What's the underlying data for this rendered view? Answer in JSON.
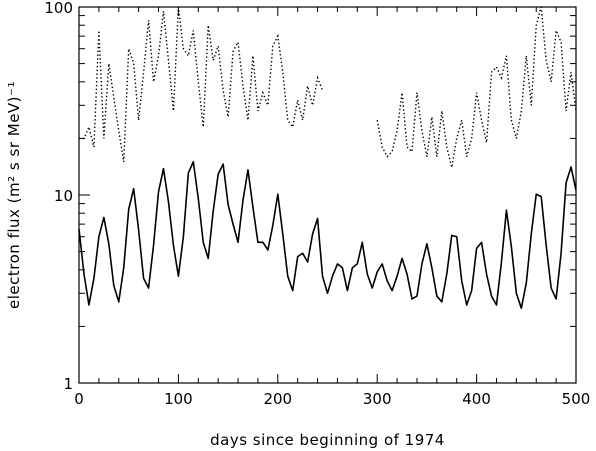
{
  "chart_data": {
    "type": "line",
    "xlabel": "days since beginning of 1974",
    "ylabel": "electron flux (m² s sr MeV)⁻¹",
    "xlim": [
      0,
      500
    ],
    "ylim": [
      1,
      100
    ],
    "yscale": "log",
    "grid": false,
    "xticks": [
      0,
      100,
      200,
      300,
      400,
      500
    ],
    "xtick_labels": [
      "0",
      "100",
      "200",
      "300",
      "400",
      "500"
    ],
    "yticks": [
      1,
      10,
      100
    ],
    "ytick_labels": [
      "1",
      "10",
      "100"
    ],
    "series": [
      {
        "style": "solid",
        "x": [
          0,
          5,
          10,
          15,
          20,
          25,
          30,
          35,
          40,
          45,
          50,
          55,
          60,
          65,
          70,
          75,
          80,
          85,
          90,
          95,
          100,
          105,
          110,
          115,
          120,
          125,
          130,
          135,
          140,
          145,
          150,
          155,
          160,
          165,
          170,
          175,
          180,
          185,
          190,
          195,
          200,
          205,
          210,
          215,
          220,
          225,
          230,
          235,
          240,
          245,
          250,
          255,
          260,
          265,
          270,
          275,
          280,
          285,
          290,
          295,
          300,
          305,
          310,
          315,
          320,
          325,
          330,
          335,
          340,
          345,
          350,
          355,
          360,
          365,
          370,
          375,
          380,
          385,
          390,
          395,
          400,
          405,
          410,
          415,
          420,
          425,
          430,
          435,
          440,
          445,
          450,
          455,
          460,
          465,
          470,
          475,
          480,
          485,
          490,
          495,
          500
        ],
        "y": [
          6.6,
          3.8,
          2.6,
          3.6,
          6.0,
          7.6,
          5.5,
          3.3,
          2.7,
          4.1,
          8.4,
          10.8,
          6.5,
          3.6,
          3.2,
          5.4,
          10.4,
          13.8,
          9.2,
          5.4,
          3.7,
          6.0,
          13.1,
          15.0,
          9.6,
          5.6,
          4.6,
          8.2,
          12.9,
          14.6,
          8.9,
          7.0,
          5.6,
          9.4,
          13.6,
          8.6,
          5.6,
          5.6,
          5.1,
          6.9,
          10.1,
          6.2,
          3.7,
          3.1,
          4.7,
          4.9,
          4.4,
          6.2,
          7.5,
          3.7,
          3.0,
          3.7,
          4.3,
          4.1,
          3.1,
          4.1,
          4.3,
          5.6,
          3.8,
          3.2,
          3.9,
          4.3,
          3.5,
          3.1,
          3.7,
          4.6,
          3.8,
          2.8,
          2.9,
          4.3,
          5.5,
          4.1,
          2.9,
          2.7,
          3.8,
          6.1,
          6.0,
          3.5,
          2.6,
          3.1,
          5.2,
          5.6,
          3.8,
          2.9,
          2.6,
          4.4,
          8.3,
          5.3,
          3.0,
          2.5,
          3.4,
          6.2,
          10.1,
          9.8,
          5.4,
          3.2,
          2.8,
          4.9,
          11.6,
          14.1,
          10.6
        ]
      },
      {
        "style": "dotted",
        "x": [
          0,
          5,
          10,
          15,
          20,
          25,
          30,
          35,
          40,
          45,
          50,
          55,
          60,
          65,
          70,
          75,
          80,
          85,
          90,
          95,
          100,
          105,
          110,
          115,
          120,
          125,
          130,
          135,
          140,
          145,
          150,
          155,
          160,
          165,
          170,
          175,
          180,
          185,
          190,
          195,
          200,
          205,
          210,
          215,
          220,
          225,
          230,
          235,
          240,
          245,
          null,
          300,
          305,
          310,
          315,
          320,
          325,
          330,
          335,
          340,
          345,
          350,
          355,
          360,
          365,
          370,
          375,
          380,
          385,
          390,
          395,
          400,
          405,
          410,
          415,
          420,
          425,
          430,
          435,
          440,
          445,
          450,
          455,
          460,
          465,
          470,
          475,
          480,
          485,
          490,
          495,
          500
        ],
        "y": [
          20,
          20,
          23,
          18,
          75,
          20,
          50,
          33,
          22,
          15,
          60,
          50,
          25,
          45,
          85,
          40,
          55,
          95,
          52,
          28,
          100,
          60,
          55,
          75,
          40,
          23,
          80,
          52,
          62,
          36,
          26,
          58,
          65,
          38,
          25,
          55,
          28,
          35,
          30,
          62,
          70,
          45,
          25,
          23,
          32,
          25,
          38,
          30,
          42,
          36,
          null,
          25,
          18,
          16,
          17,
          22,
          35,
          18,
          17,
          35,
          22,
          16,
          26,
          16,
          28,
          18,
          14,
          20,
          25,
          16,
          20,
          35,
          25,
          19,
          45,
          48,
          42,
          55,
          25,
          20,
          28,
          55,
          30,
          80,
          100,
          52,
          40,
          75,
          65,
          28,
          45,
          28
        ]
      }
    ]
  }
}
